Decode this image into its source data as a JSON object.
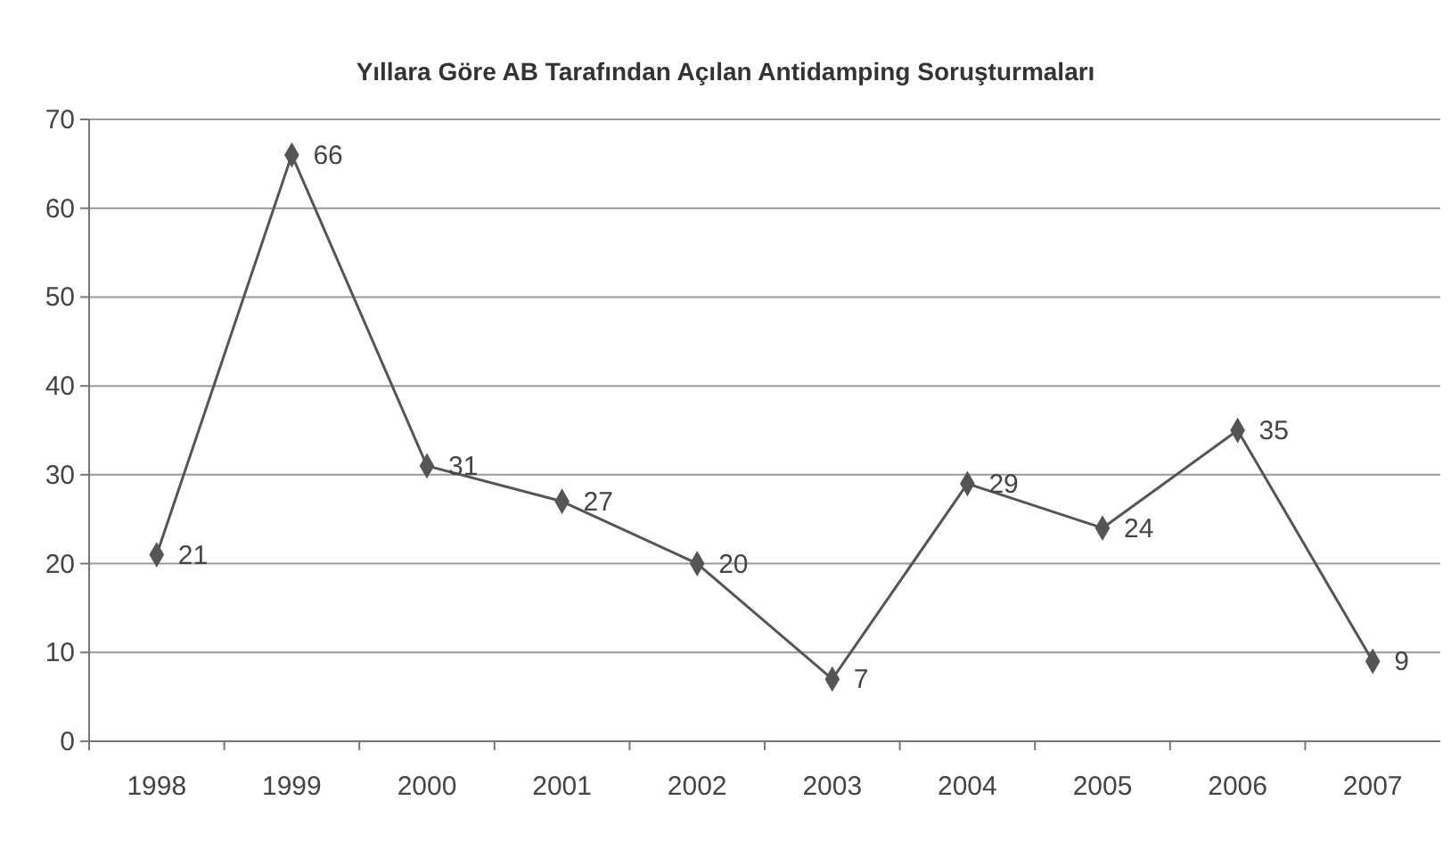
{
  "chart_data": {
    "type": "line",
    "title": "Yıllara Göre AB Tarafından Açılan Antidamping Soruşturmaları",
    "categories": [
      "1998",
      "1999",
      "2000",
      "2001",
      "2002",
      "2003",
      "2004",
      "2005",
      "2006",
      "2007"
    ],
    "series": [
      {
        "color": "#555555",
        "values": [
          21,
          66,
          31,
          27,
          20,
          7,
          29,
          24,
          35,
          9
        ]
      }
    ],
    "ylim": [
      0,
      70
    ],
    "yticks": [
      0,
      10,
      20,
      30,
      40,
      50,
      60,
      70
    ],
    "grid": "y",
    "marker": "diamond",
    "line_style": "solid",
    "data_labels": true
  }
}
